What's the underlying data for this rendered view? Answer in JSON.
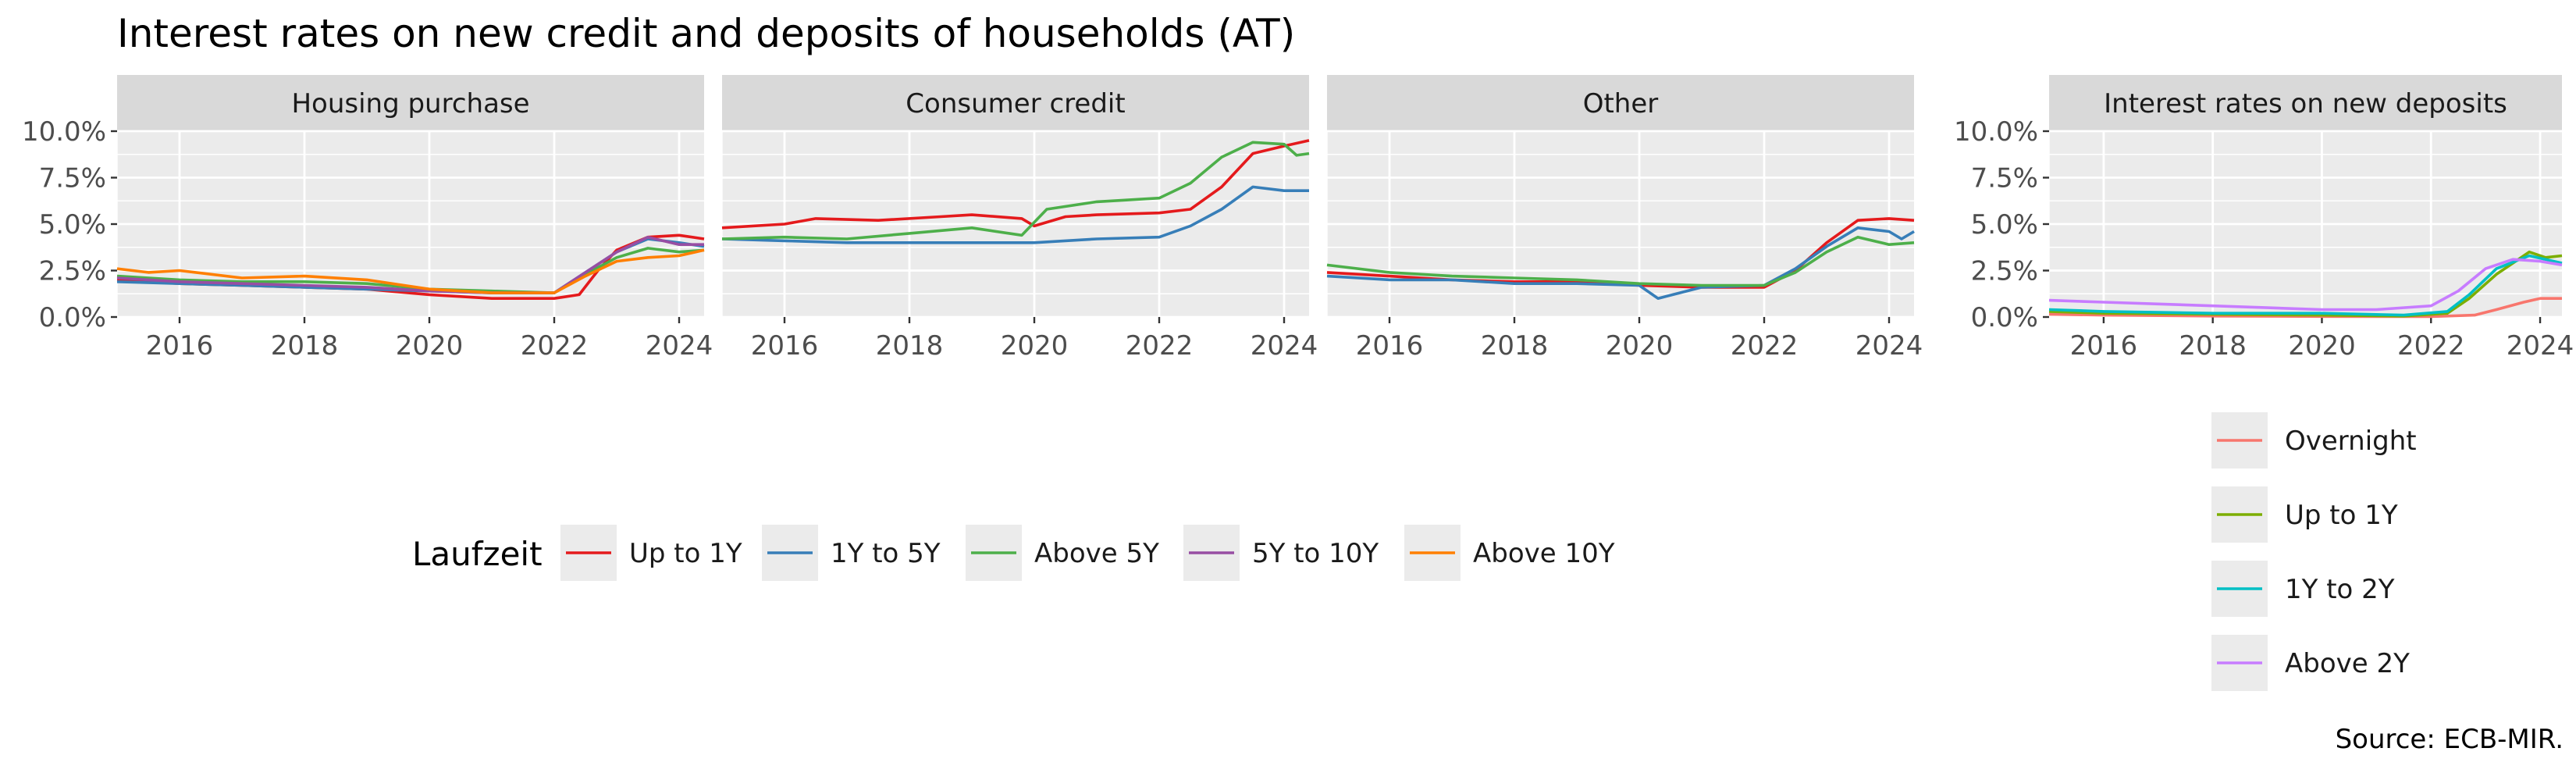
{
  "title": "Interest rates on new credit and deposits of households (AT)",
  "caption": "Source: ECB-MIR.",
  "colors": {
    "Up to 1Y": "#e41a1c",
    "1Y to 5Y": "#377eb8",
    "Above 5Y": "#4daf4a",
    "5Y to 10Y": "#984ea3",
    "Above 10Y": "#ff7f00",
    "Overnight": "#f8766d",
    "Up to 1Y (deposits)": "#7cae00",
    "1Y to 2Y": "#00bfc4",
    "Above 2Y": "#c77cff"
  },
  "legend_credit": {
    "title": "Laufzeit",
    "entries": [
      "Up to 1Y",
      "1Y to 5Y",
      "Above 5Y",
      "5Y to 10Y",
      "Above 10Y"
    ]
  },
  "legend_deposits": {
    "entries": [
      "Overnight",
      "Up to 1Y",
      "1Y to 2Y",
      "Above 2Y"
    ]
  },
  "chart_data": [
    {
      "type": "line",
      "panel_title": "Housing purchase",
      "xlim": [
        2015.0,
        2024.4
      ],
      "ylim": [
        0,
        10
      ],
      "x_ticks": [
        2016,
        2018,
        2020,
        2022,
        2024
      ],
      "y_ticks": [
        "0.0%",
        "2.5%",
        "5.0%",
        "7.5%",
        "10.0%"
      ],
      "series": [
        {
          "name": "Up to 1Y",
          "points": [
            [
              2015.0,
              2.0
            ],
            [
              2016.0,
              1.8
            ],
            [
              2017.0,
              1.7
            ],
            [
              2018.0,
              1.6
            ],
            [
              2019.0,
              1.5
            ],
            [
              2020.0,
              1.2
            ],
            [
              2021.0,
              1.0
            ],
            [
              2022.0,
              1.0
            ],
            [
              2022.4,
              1.2
            ],
            [
              2022.7,
              2.5
            ],
            [
              2023.0,
              3.6
            ],
            [
              2023.5,
              4.3
            ],
            [
              2024.0,
              4.4
            ],
            [
              2024.4,
              4.2
            ]
          ]
        },
        {
          "name": "1Y to 5Y",
          "points": [
            [
              2015.0,
              1.9
            ],
            [
              2016.0,
              1.8
            ],
            [
              2017.0,
              1.7
            ],
            [
              2018.0,
              1.6
            ],
            [
              2019.0,
              1.5
            ],
            [
              2020.0,
              1.4
            ],
            [
              2021.0,
              1.3
            ],
            [
              2022.0,
              1.3
            ],
            [
              2022.5,
              2.4
            ],
            [
              2023.0,
              3.5
            ],
            [
              2023.5,
              4.2
            ],
            [
              2024.0,
              4.0
            ],
            [
              2024.4,
              3.8
            ]
          ]
        },
        {
          "name": "Above 5Y",
          "points": [
            [
              2015.0,
              2.2
            ],
            [
              2016.0,
              2.0
            ],
            [
              2017.0,
              1.9
            ],
            [
              2018.0,
              1.9
            ],
            [
              2019.0,
              1.8
            ],
            [
              2020.0,
              1.5
            ],
            [
              2021.0,
              1.4
            ],
            [
              2022.0,
              1.3
            ],
            [
              2022.5,
              2.3
            ],
            [
              2023.0,
              3.2
            ],
            [
              2023.5,
              3.7
            ],
            [
              2024.0,
              3.5
            ],
            [
              2024.4,
              3.6
            ]
          ]
        },
        {
          "name": "5Y to 10Y",
          "points": [
            [
              2015.0,
              2.1
            ],
            [
              2016.0,
              1.9
            ],
            [
              2017.0,
              1.8
            ],
            [
              2018.0,
              1.7
            ],
            [
              2019.0,
              1.6
            ],
            [
              2020.0,
              1.4
            ],
            [
              2021.0,
              1.3
            ],
            [
              2022.0,
              1.3
            ],
            [
              2022.5,
              2.4
            ],
            [
              2023.0,
              3.5
            ],
            [
              2023.5,
              4.3
            ],
            [
              2024.0,
              3.9
            ],
            [
              2024.4,
              3.9
            ]
          ]
        },
        {
          "name": "Above 10Y",
          "points": [
            [
              2015.0,
              2.6
            ],
            [
              2015.5,
              2.4
            ],
            [
              2016.0,
              2.5
            ],
            [
              2017.0,
              2.1
            ],
            [
              2018.0,
              2.2
            ],
            [
              2019.0,
              2.0
            ],
            [
              2020.0,
              1.5
            ],
            [
              2021.0,
              1.3
            ],
            [
              2022.0,
              1.3
            ],
            [
              2022.5,
              2.2
            ],
            [
              2023.0,
              3.0
            ],
            [
              2023.5,
              3.2
            ],
            [
              2024.0,
              3.3
            ],
            [
              2024.4,
              3.6
            ]
          ]
        }
      ]
    },
    {
      "type": "line",
      "panel_title": "Consumer credit",
      "xlim": [
        2015.0,
        2024.4
      ],
      "ylim": [
        0,
        10
      ],
      "x_ticks": [
        2016,
        2018,
        2020,
        2022,
        2024
      ],
      "y_ticks": [
        "0.0%",
        "2.5%",
        "5.0%",
        "7.5%",
        "10.0%"
      ],
      "series": [
        {
          "name": "Up to 1Y",
          "points": [
            [
              2015.0,
              4.8
            ],
            [
              2016.0,
              5.0
            ],
            [
              2016.5,
              5.3
            ],
            [
              2017.5,
              5.2
            ],
            [
              2018.5,
              5.4
            ],
            [
              2019.0,
              5.5
            ],
            [
              2019.8,
              5.3
            ],
            [
              2020.0,
              4.9
            ],
            [
              2020.5,
              5.4
            ],
            [
              2021.0,
              5.5
            ],
            [
              2022.0,
              5.6
            ],
            [
              2022.5,
              5.8
            ],
            [
              2023.0,
              7.0
            ],
            [
              2023.5,
              8.8
            ],
            [
              2024.0,
              9.2
            ],
            [
              2024.4,
              9.5
            ]
          ]
        },
        {
          "name": "1Y to 5Y",
          "points": [
            [
              2015.0,
              4.2
            ],
            [
              2016.0,
              4.1
            ],
            [
              2017.0,
              4.0
            ],
            [
              2018.0,
              4.0
            ],
            [
              2019.0,
              4.0
            ],
            [
              2020.0,
              4.0
            ],
            [
              2021.0,
              4.2
            ],
            [
              2022.0,
              4.3
            ],
            [
              2022.5,
              4.9
            ],
            [
              2023.0,
              5.8
            ],
            [
              2023.5,
              7.0
            ],
            [
              2024.0,
              6.8
            ],
            [
              2024.4,
              6.8
            ]
          ]
        },
        {
          "name": "Above 5Y",
          "points": [
            [
              2015.0,
              4.2
            ],
            [
              2016.0,
              4.3
            ],
            [
              2017.0,
              4.2
            ],
            [
              2018.0,
              4.5
            ],
            [
              2019.0,
              4.8
            ],
            [
              2019.8,
              4.4
            ],
            [
              2020.2,
              5.8
            ],
            [
              2021.0,
              6.2
            ],
            [
              2022.0,
              6.4
            ],
            [
              2022.5,
              7.2
            ],
            [
              2023.0,
              8.6
            ],
            [
              2023.5,
              9.4
            ],
            [
              2024.0,
              9.3
            ],
            [
              2024.2,
              8.7
            ],
            [
              2024.4,
              8.8
            ]
          ]
        }
      ]
    },
    {
      "type": "line",
      "panel_title": "Other",
      "xlim": [
        2015.0,
        2024.4
      ],
      "ylim": [
        0,
        10
      ],
      "x_ticks": [
        2016,
        2018,
        2020,
        2022,
        2024
      ],
      "y_ticks": [
        "0.0%",
        "2.5%",
        "5.0%",
        "7.5%",
        "10.0%"
      ],
      "series": [
        {
          "name": "Up to 1Y",
          "points": [
            [
              2015.0,
              2.4
            ],
            [
              2016.0,
              2.2
            ],
            [
              2017.0,
              2.0
            ],
            [
              2018.0,
              1.9
            ],
            [
              2019.0,
              1.9
            ],
            [
              2020.0,
              1.7
            ],
            [
              2021.0,
              1.6
            ],
            [
              2022.0,
              1.6
            ],
            [
              2022.5,
              2.5
            ],
            [
              2023.0,
              4.0
            ],
            [
              2023.5,
              5.2
            ],
            [
              2024.0,
              5.3
            ],
            [
              2024.4,
              5.2
            ]
          ]
        },
        {
          "name": "1Y to 5Y",
          "points": [
            [
              2015.0,
              2.2
            ],
            [
              2016.0,
              2.0
            ],
            [
              2017.0,
              2.0
            ],
            [
              2018.0,
              1.8
            ],
            [
              2019.0,
              1.8
            ],
            [
              2020.0,
              1.7
            ],
            [
              2020.3,
              1.0
            ],
            [
              2021.0,
              1.6
            ],
            [
              2022.0,
              1.7
            ],
            [
              2022.5,
              2.6
            ],
            [
              2023.0,
              3.8
            ],
            [
              2023.5,
              4.8
            ],
            [
              2024.0,
              4.6
            ],
            [
              2024.2,
              4.2
            ],
            [
              2024.4,
              4.6
            ]
          ]
        },
        {
          "name": "Above 5Y",
          "points": [
            [
              2015.0,
              2.8
            ],
            [
              2016.0,
              2.4
            ],
            [
              2017.0,
              2.2
            ],
            [
              2018.0,
              2.1
            ],
            [
              2019.0,
              2.0
            ],
            [
              2020.0,
              1.8
            ],
            [
              2021.0,
              1.7
            ],
            [
              2022.0,
              1.7
            ],
            [
              2022.5,
              2.4
            ],
            [
              2023.0,
              3.5
            ],
            [
              2023.5,
              4.3
            ],
            [
              2024.0,
              3.9
            ],
            [
              2024.4,
              4.0
            ]
          ]
        }
      ]
    },
    {
      "type": "line",
      "panel_title": "Interest rates on new deposits",
      "xlim": [
        2015.0,
        2024.4
      ],
      "ylim": [
        0,
        10
      ],
      "x_ticks": [
        2016,
        2018,
        2020,
        2022,
        2024
      ],
      "y_ticks": [
        "0.0%",
        "2.5%",
        "5.0%",
        "7.5%",
        "10.0%"
      ],
      "series": [
        {
          "name": "Overnight",
          "points": [
            [
              2015.0,
              0.15
            ],
            [
              2016.0,
              0.1
            ],
            [
              2018.0,
              0.05
            ],
            [
              2020.0,
              0.03
            ],
            [
              2022.0,
              0.02
            ],
            [
              2022.8,
              0.1
            ],
            [
              2023.2,
              0.4
            ],
            [
              2023.7,
              0.8
            ],
            [
              2024.0,
              1.0
            ],
            [
              2024.4,
              1.0
            ]
          ]
        },
        {
          "name": "Up to 1Y",
          "points": [
            [
              2015.0,
              0.3
            ],
            [
              2016.0,
              0.2
            ],
            [
              2018.0,
              0.15
            ],
            [
              2020.0,
              0.1
            ],
            [
              2021.5,
              0.05
            ],
            [
              2022.3,
              0.2
            ],
            [
              2022.7,
              1.0
            ],
            [
              2023.2,
              2.3
            ],
            [
              2023.8,
              3.5
            ],
            [
              2024.1,
              3.2
            ],
            [
              2024.4,
              3.3
            ]
          ]
        },
        {
          "name": "1Y to 2Y",
          "points": [
            [
              2015.0,
              0.4
            ],
            [
              2016.0,
              0.3
            ],
            [
              2018.0,
              0.2
            ],
            [
              2020.0,
              0.2
            ],
            [
              2021.5,
              0.1
            ],
            [
              2022.3,
              0.3
            ],
            [
              2022.7,
              1.2
            ],
            [
              2023.2,
              2.6
            ],
            [
              2023.8,
              3.3
            ],
            [
              2024.1,
              3.1
            ],
            [
              2024.4,
              2.9
            ]
          ]
        },
        {
          "name": "Above 2Y",
          "points": [
            [
              2015.0,
              0.9
            ],
            [
              2016.0,
              0.8
            ],
            [
              2017.0,
              0.7
            ],
            [
              2018.0,
              0.6
            ],
            [
              2019.0,
              0.5
            ],
            [
              2020.0,
              0.4
            ],
            [
              2021.0,
              0.4
            ],
            [
              2022.0,
              0.6
            ],
            [
              2022.5,
              1.4
            ],
            [
              2023.0,
              2.6
            ],
            [
              2023.5,
              3.1
            ],
            [
              2024.0,
              3.0
            ],
            [
              2024.4,
              2.8
            ]
          ]
        }
      ]
    }
  ]
}
